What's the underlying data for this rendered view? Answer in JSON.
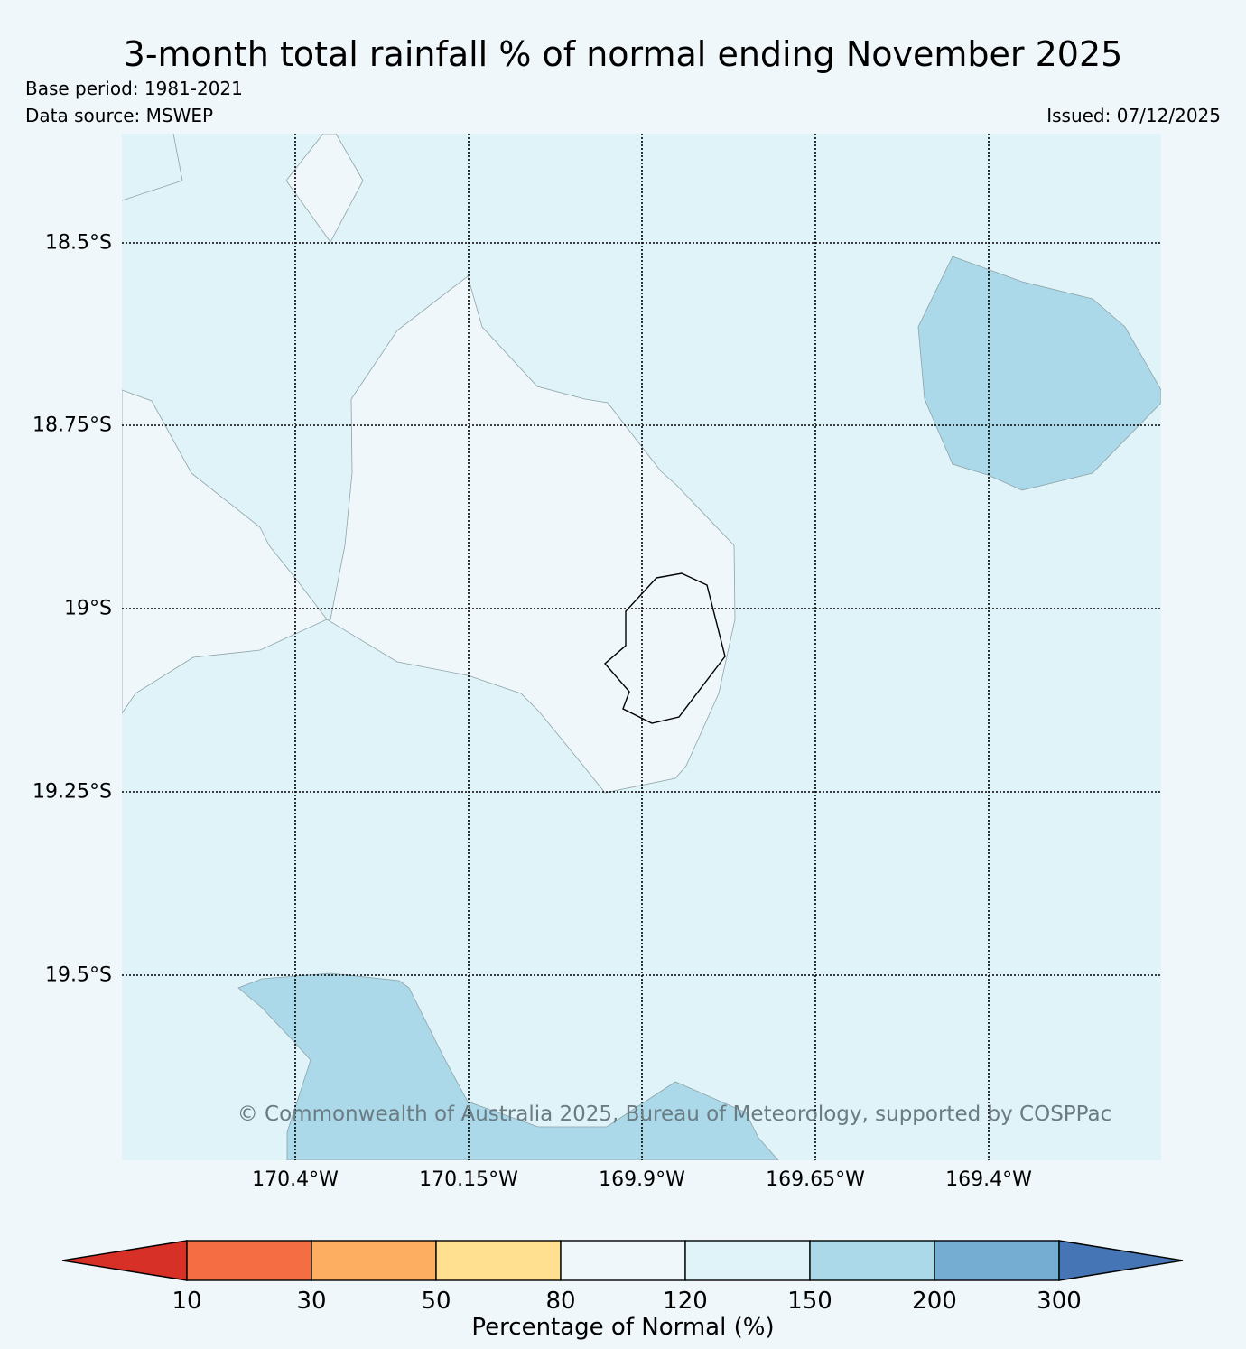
{
  "title": "3-month total rainfall % of normal ending November 2025",
  "base_period": "Base period: 1981-2021",
  "data_source": "Data source: MSWEP",
  "issued": "Issued: 07/12/2025",
  "copyright": "© Commonwealth of Australia 2025, Bureau of Meteorology, supported by COSPPac",
  "map": {
    "background_category": "120-150",
    "latitude_labels": [
      "18.5°S",
      "18.75°S",
      "19°S",
      "19.25°S",
      "19.5°S"
    ],
    "longitude_labels": [
      "170.4°W",
      "170.15°W",
      "169.9°W",
      "169.65°W",
      "169.4°W"
    ],
    "regions": [
      {
        "name": "central-normal-region",
        "category": "80-120"
      },
      {
        "name": "north-normal-region",
        "category": "80-120"
      },
      {
        "name": "east-wet-region",
        "category": "150-200"
      },
      {
        "name": "south-wet-region",
        "category": "150-200"
      }
    ],
    "island": "niue-island"
  },
  "colorbar": {
    "title": "Percentage of Normal (%)",
    "labels": [
      "10",
      "30",
      "50",
      "80",
      "120",
      "150",
      "200",
      "300"
    ],
    "colors": [
      "#d73027",
      "#f46d43",
      "#fdae61",
      "#fee090",
      "#eff7fa",
      "#e0f3f8",
      "#abd9e9",
      "#74add1",
      "#4575b4"
    ]
  }
}
